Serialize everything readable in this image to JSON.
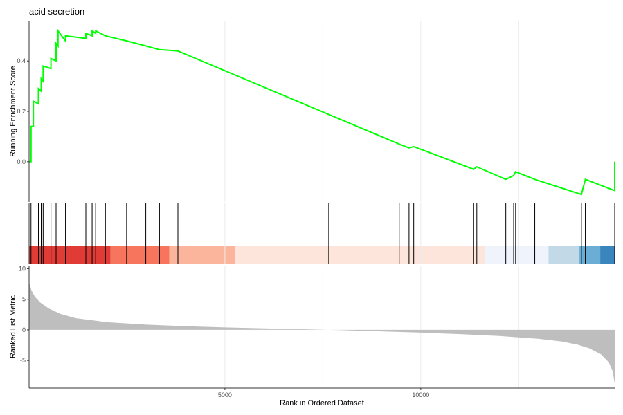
{
  "chart_data": {
    "type": "line",
    "title": "acid secretion",
    "colors": {
      "curve": "#00ff00",
      "hit_lines": "#000000",
      "metric_fill": "#bebebe",
      "grid": "#ebebeb"
    },
    "running_score": {
      "ylabel": "Running Enrichment Score",
      "yticks": [
        0.0,
        0.2,
        0.4
      ],
      "ytick_labels": [
        "0.0",
        "0.2",
        "0.4"
      ],
      "ylim": [
        -0.16,
        0.56
      ],
      "x": [
        1,
        50,
        50,
        110,
        110,
        240,
        240,
        310,
        310,
        360,
        360,
        560,
        560,
        690,
        690,
        740,
        740,
        930,
        930,
        1450,
        1450,
        1610,
        1610,
        1700,
        1700,
        1950,
        1950,
        2490,
        2490,
        2980,
        2980,
        3330,
        3330,
        3800,
        3800,
        9450,
        9450,
        9700,
        9700,
        9820,
        9820,
        11350,
        11350,
        11430,
        11430,
        12170,
        12170,
        12370,
        12370,
        12420,
        12420,
        12910,
        12910,
        14100,
        14100,
        14200,
        14200,
        14950,
        14950
      ],
      "y": [
        0.0,
        0.0,
        0.14,
        0.14,
        0.24,
        0.23,
        0.29,
        0.28,
        0.33,
        0.32,
        0.38,
        0.37,
        0.41,
        0.4,
        0.47,
        0.46,
        0.52,
        0.48,
        0.5,
        0.49,
        0.51,
        0.5,
        0.52,
        0.51,
        0.52,
        0.5,
        0.5,
        0.48,
        0.48,
        0.46,
        0.46,
        0.445,
        0.445,
        0.44,
        0.44,
        0.07,
        0.07,
        0.055,
        0.055,
        0.06,
        0.06,
        -0.03,
        -0.03,
        -0.02,
        -0.02,
        -0.07,
        -0.07,
        -0.055,
        -0.055,
        -0.04,
        -0.04,
        -0.07,
        -0.07,
        -0.13,
        -0.13,
        -0.07,
        -0.07,
        -0.115,
        0.0
      ]
    },
    "hits": {
      "positions": [
        1,
        50,
        240,
        310,
        360,
        560,
        690,
        930,
        1450,
        1610,
        1700,
        1950,
        2490,
        2980,
        3330,
        3800,
        7650,
        9450,
        9700,
        9820,
        11350,
        11430,
        12170,
        12370,
        12420,
        12910,
        14100,
        14200,
        14950
      ]
    },
    "ranked_metric": {
      "xlabel": "Rank in Ordered Dataset",
      "ylabel": "Ranked List Metric",
      "xlim": [
        1,
        14950
      ],
      "xticks": [
        5000,
        10000
      ],
      "xtick_labels": [
        "5000",
        "10000"
      ],
      "yticks": [
        -5,
        0,
        5,
        10
      ],
      "ytick_labels": [
        "-5",
        "0",
        "5",
        "10"
      ],
      "ylim": [
        -9.5,
        10.5
      ],
      "x": [
        1,
        60,
        150,
        300,
        500,
        800,
        1200,
        2000,
        3000,
        4000,
        5000,
        6000,
        7000,
        8000,
        9000,
        10000,
        11000,
        12000,
        13000,
        13600,
        14000,
        14300,
        14600,
        14800,
        14900,
        14950
      ],
      "values": [
        7.8,
        6.5,
        5.4,
        4.4,
        3.5,
        2.6,
        1.9,
        1.25,
        0.85,
        0.6,
        0.4,
        0.25,
        0.1,
        -0.05,
        -0.25,
        -0.45,
        -0.7,
        -1.0,
        -1.45,
        -1.9,
        -2.4,
        -3.0,
        -4.0,
        -5.3,
        -6.8,
        -8.8
      ]
    },
    "color_bar": [
      {
        "start": 1,
        "end": 2080,
        "color": "#e03b34"
      },
      {
        "start": 2080,
        "end": 3580,
        "color": "#f7755c"
      },
      {
        "start": 3580,
        "end": 5260,
        "color": "#fcb59d"
      },
      {
        "start": 5260,
        "end": 11640,
        "color": "#fde5dc"
      },
      {
        "start": 11640,
        "end": 13260,
        "color": "#eff3fb"
      },
      {
        "start": 13260,
        "end": 14050,
        "color": "#c2dae8"
      },
      {
        "start": 14050,
        "end": 14580,
        "color": "#6aaed6"
      },
      {
        "start": 14580,
        "end": 14950,
        "color": "#3a85be"
      }
    ]
  }
}
